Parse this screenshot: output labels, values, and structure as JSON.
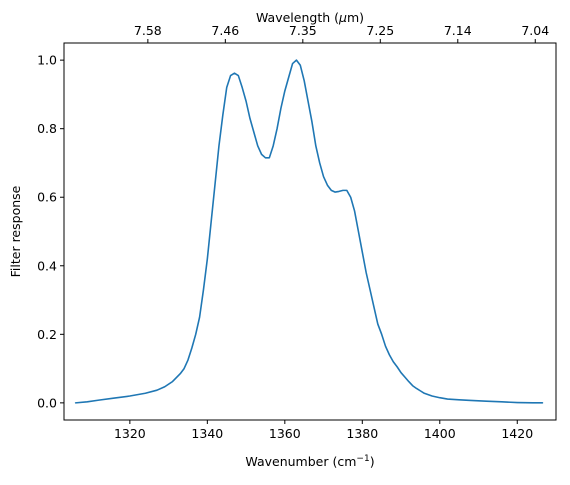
{
  "chart_data": {
    "type": "line",
    "title": "",
    "xlabel": "Wavenumber (cm",
    "xlabel_sup": "−1",
    "xlabel_suffix": ")",
    "ylabel": "Filter response",
    "top_axis": {
      "label_prefix": "Wavelength (",
      "label_mu": "μ",
      "label_suffix": "m)",
      "tick_labels": [
        "7.58",
        "7.46",
        "7.35",
        "7.25",
        "7.14",
        "7.04"
      ],
      "tick_wavenumbers": [
        1320,
        1340,
        1360,
        1380,
        1400,
        1420
      ]
    },
    "xlim": [
      1303,
      1430
    ],
    "ylim": [
      -0.05,
      1.05
    ],
    "x_ticks": [
      1320,
      1340,
      1360,
      1380,
      1400,
      1420
    ],
    "x_tick_labels": [
      "1320",
      "1340",
      "1360",
      "1380",
      "1400",
      "1420"
    ],
    "y_ticks": [
      0.0,
      0.2,
      0.4,
      0.6,
      0.8,
      1.0
    ],
    "y_tick_labels": [
      "0.0",
      "0.2",
      "0.4",
      "0.6",
      "0.8",
      "1.0"
    ],
    "grid": false,
    "series": [
      {
        "color": "#1f77b4",
        "x": [
          1306,
          1309,
          1312,
          1316,
          1320,
          1324,
          1327,
          1329,
          1331,
          1333,
          1334,
          1335,
          1336,
          1337,
          1338,
          1339,
          1340,
          1341,
          1342,
          1343,
          1344,
          1345,
          1346,
          1347,
          1348,
          1349,
          1350,
          1351,
          1352,
          1353,
          1354,
          1355,
          1356,
          1357,
          1358,
          1359,
          1360,
          1361,
          1362,
          1363,
          1364,
          1365,
          1366,
          1367,
          1368,
          1369,
          1370,
          1371,
          1372,
          1373,
          1374,
          1375,
          1376,
          1377,
          1378,
          1379,
          1380,
          1381,
          1382,
          1383,
          1384,
          1385,
          1386,
          1387,
          1388,
          1389,
          1390,
          1391,
          1392,
          1393,
          1394,
          1395,
          1396,
          1397,
          1398,
          1400,
          1402,
          1405,
          1408,
          1412,
          1416,
          1420,
          1424,
          1426.5
        ],
        "y": [
          0.0,
          0.003,
          0.008,
          0.014,
          0.02,
          0.028,
          0.037,
          0.047,
          0.062,
          0.085,
          0.1,
          0.125,
          0.16,
          0.2,
          0.25,
          0.33,
          0.42,
          0.53,
          0.64,
          0.75,
          0.84,
          0.92,
          0.955,
          0.962,
          0.955,
          0.92,
          0.88,
          0.83,
          0.79,
          0.75,
          0.725,
          0.715,
          0.715,
          0.75,
          0.8,
          0.86,
          0.91,
          0.95,
          0.99,
          1.0,
          0.985,
          0.94,
          0.88,
          0.82,
          0.75,
          0.7,
          0.66,
          0.635,
          0.62,
          0.615,
          0.617,
          0.62,
          0.62,
          0.6,
          0.56,
          0.5,
          0.44,
          0.38,
          0.33,
          0.28,
          0.23,
          0.2,
          0.165,
          0.14,
          0.12,
          0.105,
          0.088,
          0.075,
          0.062,
          0.05,
          0.042,
          0.035,
          0.028,
          0.024,
          0.02,
          0.015,
          0.011,
          0.009,
          0.007,
          0.005,
          0.003,
          0.001,
          0.0,
          0.0
        ]
      }
    ]
  }
}
